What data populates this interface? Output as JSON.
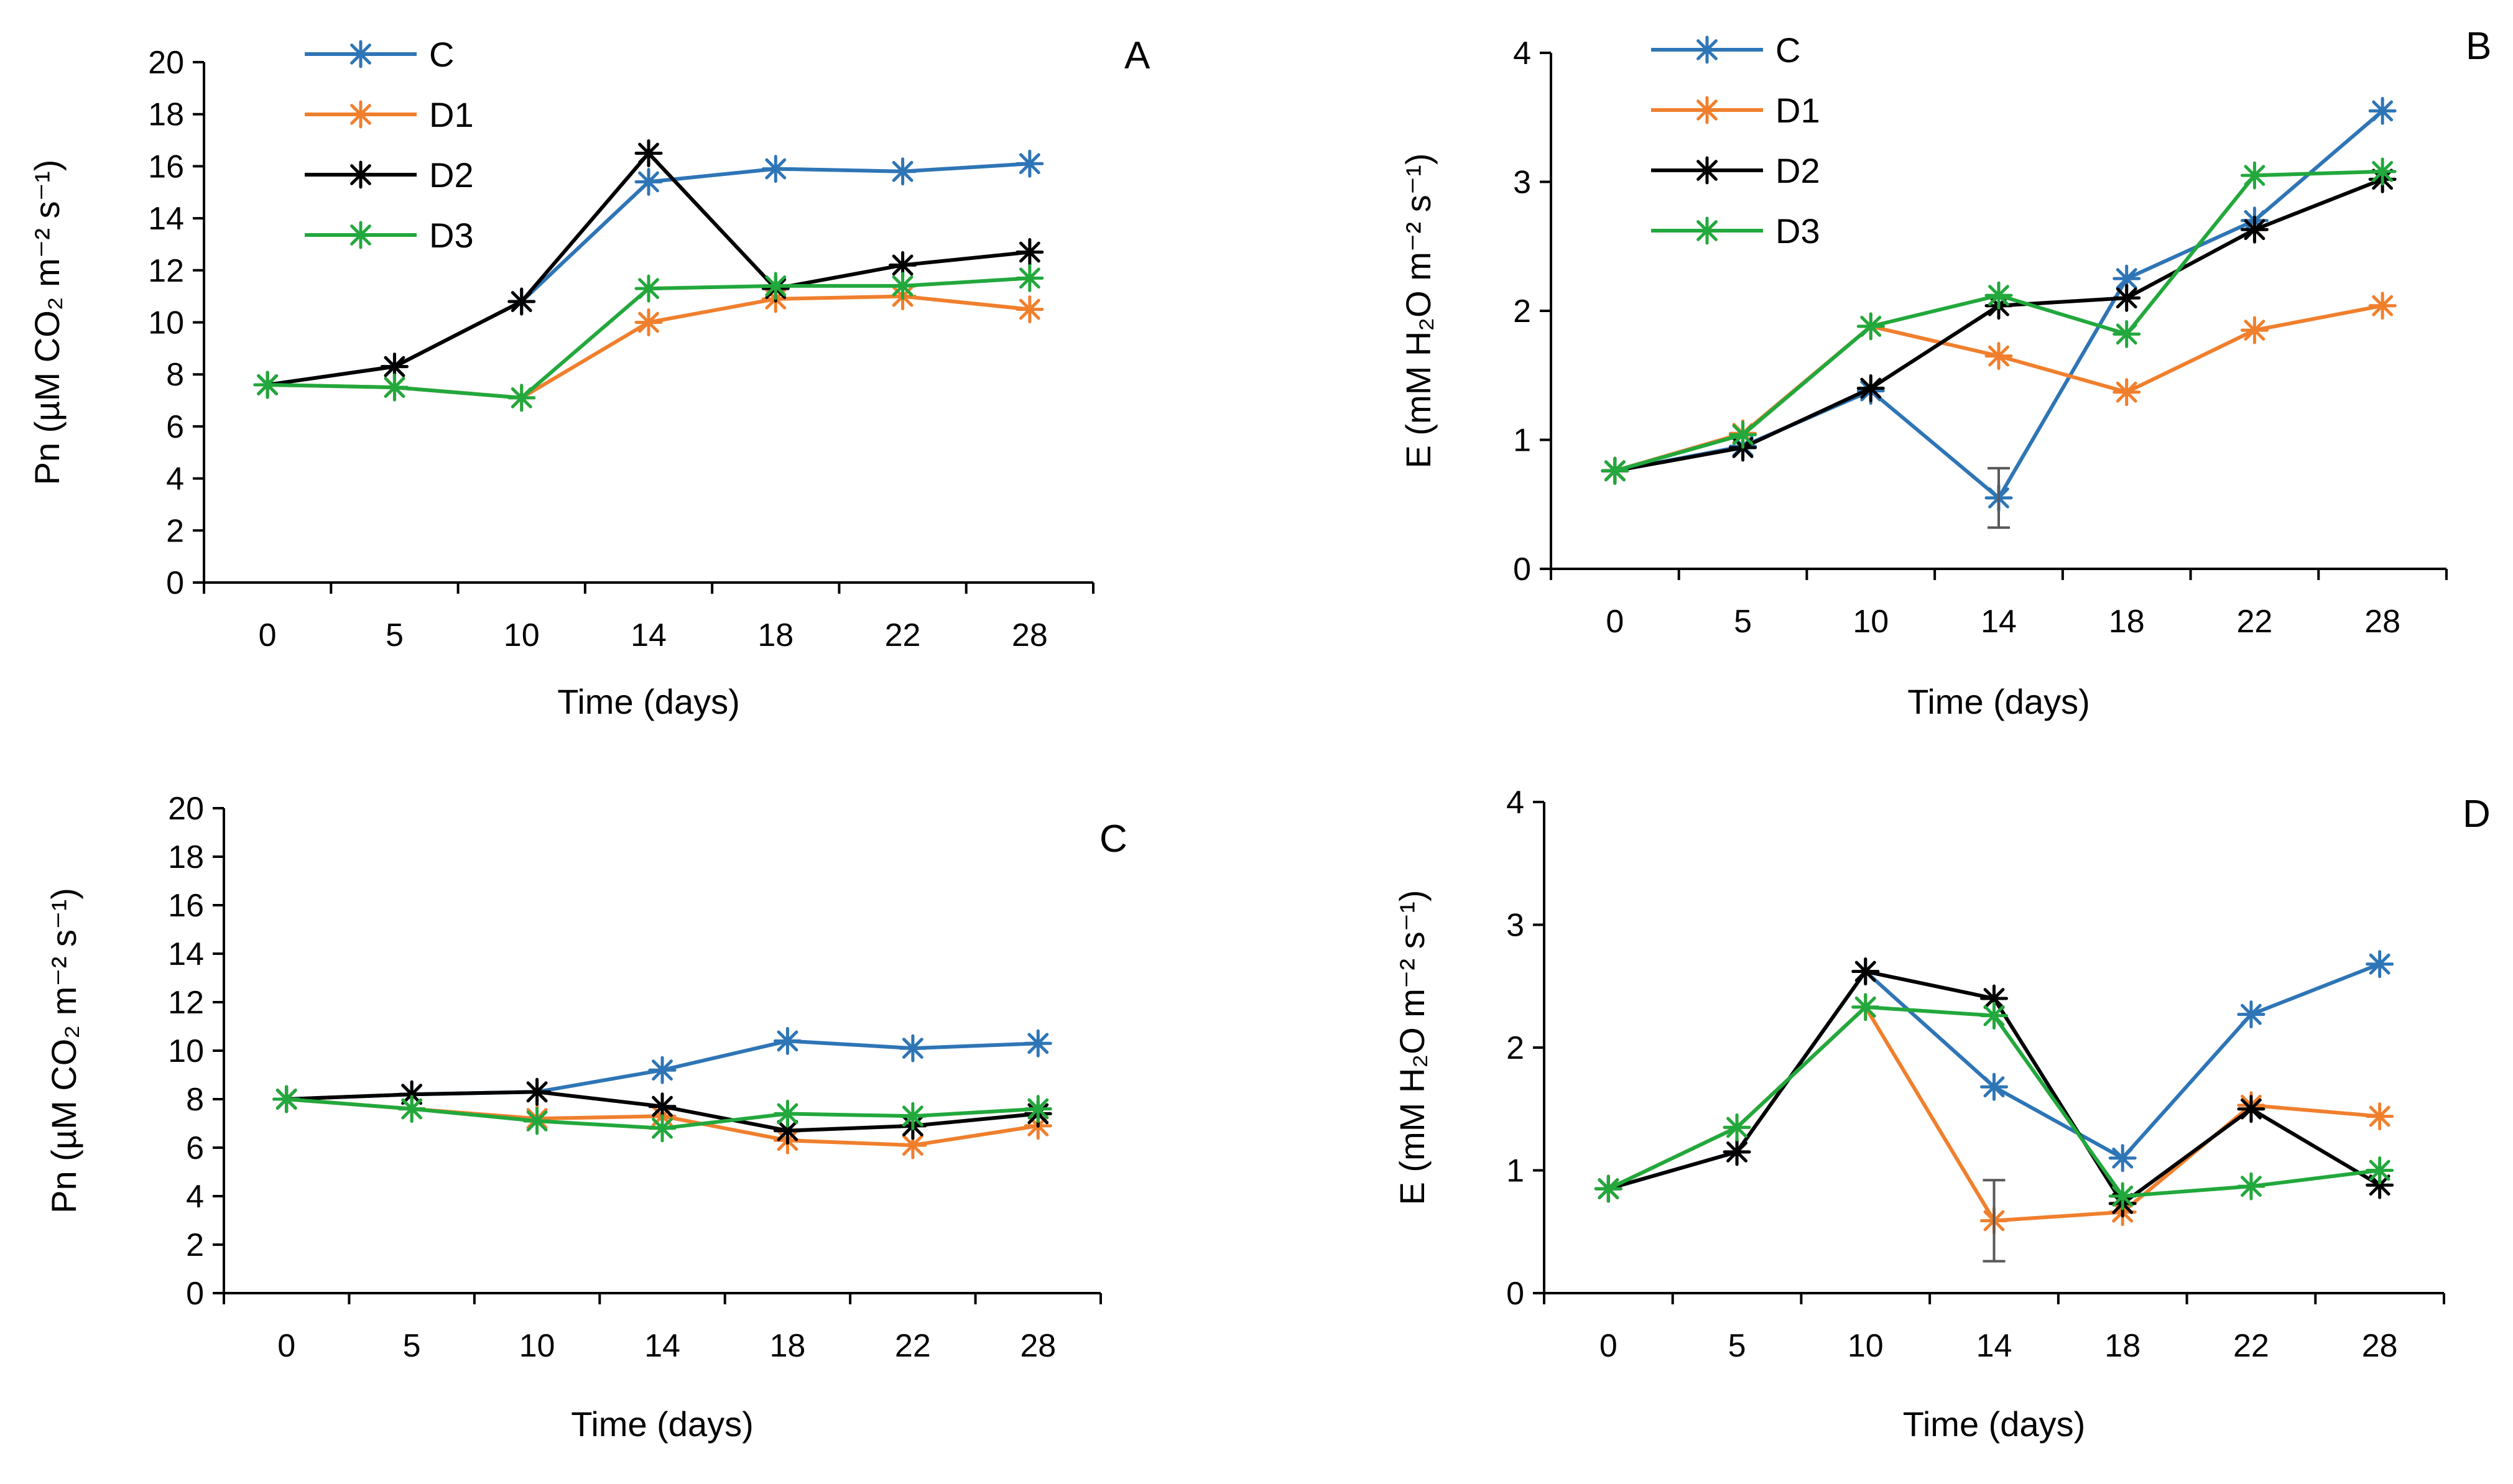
{
  "legend": [
    {
      "name": "C",
      "color": "#2E75B6"
    },
    {
      "name": "D1",
      "color": "#F07F2D"
    },
    {
      "name": "D2",
      "color": "#000000"
    },
    {
      "name": "D3",
      "color": "#22A83C"
    }
  ],
  "chart_data": [
    {
      "type": "line",
      "panel_label": "A",
      "title": "",
      "xlabel": "Time (days)",
      "ylabel": "Pn (µM CO₂ m⁻² s⁻¹)",
      "categories": [
        "0",
        "5",
        "10",
        "14",
        "18",
        "22",
        "28"
      ],
      "ylim": [
        0,
        20
      ],
      "yticks": [
        "0",
        "2",
        "4",
        "6",
        "8",
        "10",
        "12",
        "14",
        "16",
        "18",
        "20"
      ],
      "show_legend": true,
      "series": [
        {
          "name": "C",
          "color": "#2E75B6",
          "values": [
            7.6,
            8.3,
            10.8,
            15.4,
            15.9,
            15.8,
            16.1
          ]
        },
        {
          "name": "D1",
          "color": "#F07F2D",
          "values": [
            7.6,
            7.5,
            7.1,
            10.0,
            10.9,
            11.0,
            10.5
          ]
        },
        {
          "name": "D2",
          "color": "#000000",
          "values": [
            7.6,
            8.3,
            10.8,
            16.5,
            11.3,
            12.2,
            12.7
          ]
        },
        {
          "name": "D3",
          "color": "#22A83C",
          "values": [
            7.6,
            7.5,
            7.1,
            11.3,
            11.4,
            11.4,
            11.7
          ]
        }
      ],
      "error_bars": []
    },
    {
      "type": "line",
      "panel_label": "B",
      "title": "",
      "xlabel": "Time (days)",
      "ylabel": "E (mM H₂O m⁻² s⁻¹)",
      "categories": [
        "0",
        "5",
        "10",
        "14",
        "18",
        "22",
        "28"
      ],
      "ylim": [
        0,
        4
      ],
      "yticks": [
        "0",
        "1",
        "2",
        "3",
        "4"
      ],
      "show_legend": true,
      "series": [
        {
          "name": "C",
          "color": "#2E75B6",
          "values": [
            0.76,
            0.95,
            1.38,
            0.55,
            2.25,
            2.7,
            3.55
          ]
        },
        {
          "name": "D1",
          "color": "#F07F2D",
          "values": [
            0.76,
            1.05,
            1.88,
            1.65,
            1.37,
            1.85,
            2.04
          ]
        },
        {
          "name": "D2",
          "color": "#000000",
          "values": [
            0.76,
            0.94,
            1.4,
            2.04,
            2.1,
            2.63,
            3.02
          ]
        },
        {
          "name": "D3",
          "color": "#22A83C",
          "values": [
            0.76,
            1.04,
            1.88,
            2.12,
            1.82,
            3.05,
            3.08
          ]
        }
      ],
      "error_bars": [
        {
          "category_index": 3,
          "center": 0.55,
          "err": 0.23
        }
      ]
    },
    {
      "type": "line",
      "panel_label": "C",
      "title": "",
      "xlabel": "Time (days)",
      "ylabel": "Pn (µM CO₂ m⁻² s⁻¹)",
      "categories": [
        "0",
        "5",
        "10",
        "14",
        "18",
        "22",
        "28"
      ],
      "ylim": [
        0,
        20
      ],
      "yticks": [
        "0",
        "2",
        "4",
        "6",
        "8",
        "10",
        "12",
        "14",
        "16",
        "18",
        "20"
      ],
      "show_legend": false,
      "series": [
        {
          "name": "C",
          "color": "#2E75B6",
          "values": [
            8.0,
            8.2,
            8.3,
            9.2,
            10.4,
            10.1,
            10.3
          ]
        },
        {
          "name": "D1",
          "color": "#F07F2D",
          "values": [
            8.0,
            7.6,
            7.2,
            7.3,
            6.3,
            6.1,
            6.9
          ]
        },
        {
          "name": "D2",
          "color": "#000000",
          "values": [
            8.0,
            8.2,
            8.3,
            7.7,
            6.7,
            6.9,
            7.4
          ]
        },
        {
          "name": "D3",
          "color": "#22A83C",
          "values": [
            8.0,
            7.6,
            7.1,
            6.8,
            7.4,
            7.3,
            7.6
          ]
        }
      ],
      "error_bars": []
    },
    {
      "type": "line",
      "panel_label": "D",
      "title": "",
      "xlabel": "Time (days)",
      "ylabel": "E (mM H₂O m⁻² s⁻¹)",
      "categories": [
        "0",
        "5",
        "10",
        "14",
        "18",
        "22",
        "28"
      ],
      "ylim": [
        0,
        4
      ],
      "yticks": [
        "0",
        "1",
        "2",
        "3",
        "4"
      ],
      "show_legend": false,
      "series": [
        {
          "name": "C",
          "color": "#2E75B6",
          "values": [
            0.85,
            1.15,
            2.62,
            1.68,
            1.1,
            2.27,
            2.68
          ]
        },
        {
          "name": "D1",
          "color": "#F07F2D",
          "values": [
            0.85,
            1.35,
            2.33,
            0.59,
            0.66,
            1.53,
            1.44
          ]
        },
        {
          "name": "D2",
          "color": "#000000",
          "values": [
            0.85,
            1.15,
            2.62,
            2.4,
            0.73,
            1.5,
            0.88
          ]
        },
        {
          "name": "D3",
          "color": "#22A83C",
          "values": [
            0.85,
            1.35,
            2.33,
            2.26,
            0.79,
            0.87,
            1.0
          ]
        }
      ],
      "error_bars": [
        {
          "category_index": 3,
          "center": 0.59,
          "err": 0.33
        }
      ]
    }
  ]
}
